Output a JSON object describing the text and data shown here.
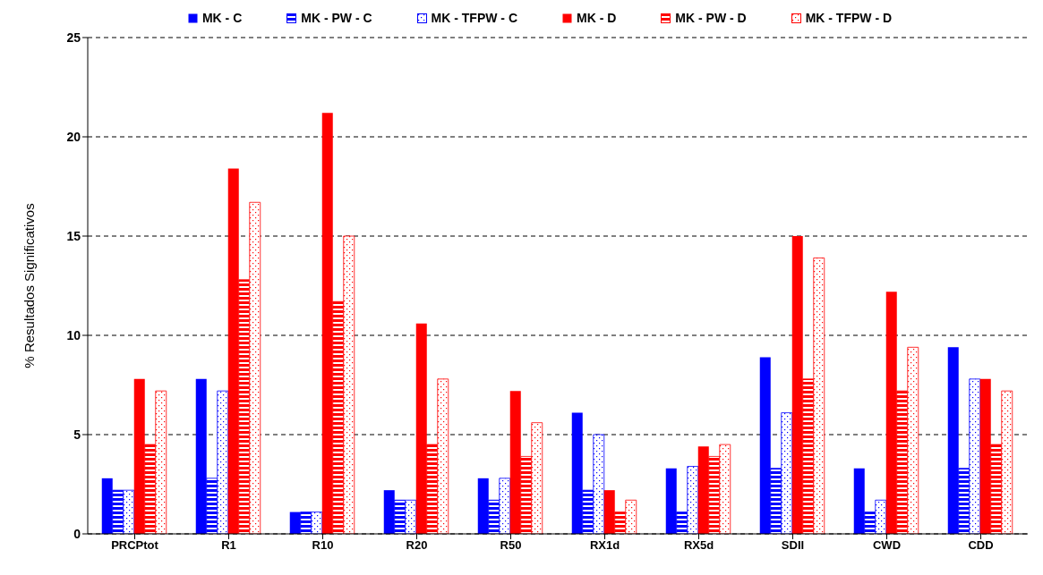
{
  "chart_data": {
    "type": "bar",
    "ylabel": "% Resultados Significativos",
    "categories": [
      "PRCPtot",
      "R1",
      "R10",
      "R20",
      "R50",
      "RX1d",
      "RX5d",
      "SDII",
      "CWD",
      "CDD"
    ],
    "series": [
      {
        "name": "MK - C",
        "color": "#0000ff",
        "values": [
          2.8,
          7.8,
          1.1,
          2.2,
          2.8,
          6.1,
          3.3,
          8.9,
          3.3,
          9.4
        ]
      },
      {
        "name": "MK - PW - C",
        "color": "#0000ff",
        "values": [
          2.2,
          2.8,
          1.1,
          1.7,
          1.7,
          2.2,
          1.1,
          3.3,
          1.1,
          3.3
        ]
      },
      {
        "name": "MK - TFPW - C",
        "color": "#0000ff",
        "values": [
          2.2,
          7.2,
          1.1,
          1.7,
          2.8,
          5.0,
          3.4,
          6.1,
          1.7,
          7.8
        ]
      },
      {
        "name": "MK - D",
        "color": "#ff0000",
        "values": [
          7.8,
          18.4,
          21.2,
          10.6,
          7.2,
          2.2,
          4.4,
          15.0,
          12.2,
          7.8
        ]
      },
      {
        "name": "MK - PW - D",
        "color": "#ff0000",
        "values": [
          4.5,
          12.8,
          11.7,
          4.5,
          3.9,
          1.1,
          3.9,
          7.8,
          7.2,
          4.5
        ]
      },
      {
        "name": "MK - TFPW - D",
        "color": "#ff0000",
        "values": [
          7.2,
          16.7,
          15.0,
          7.8,
          5.6,
          1.7,
          4.5,
          13.9,
          9.4,
          7.2
        ]
      }
    ],
    "ylim": [
      0,
      25
    ],
    "yticks": [
      0,
      5,
      10,
      15,
      20,
      25
    ],
    "grid": "y",
    "legend": "top"
  }
}
